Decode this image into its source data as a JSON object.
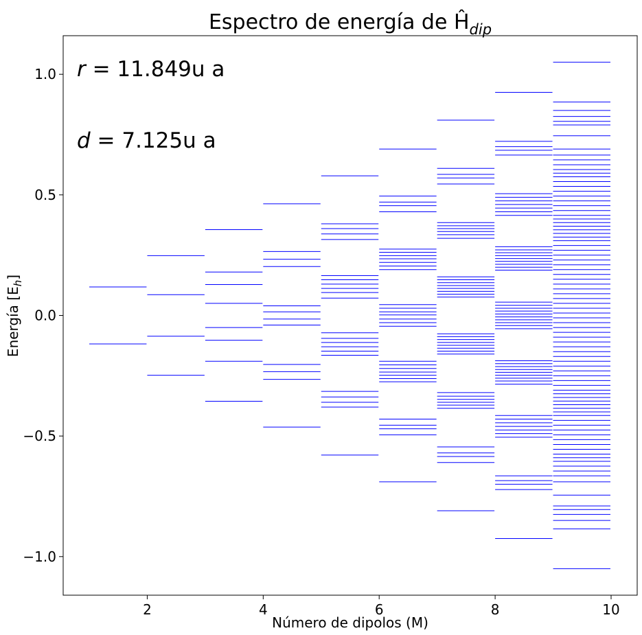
{
  "chart_data": {
    "type": "spectrum",
    "title": "Espectro de energía de Ĥ",
    "title_symbol_subscript": "dip",
    "xlabel": "Número de dipolos (M)",
    "ylabel": "Energía [E",
    "ylabel_subscript": "h",
    "ylabel_suffix": "]",
    "xlim": [
      0.55,
      10.45
    ],
    "ylim": [
      -1.16,
      1.16
    ],
    "xticks": [
      2,
      4,
      6,
      8,
      10
    ],
    "yticks": [
      -1.0,
      -0.5,
      0.0,
      0.5,
      1.0
    ],
    "ytick_labels": [
      "−1.0",
      "−0.5",
      "0.0",
      "0.5",
      "1.0"
    ],
    "annotations": [
      {
        "var": "r",
        "text": " = 11.849u a"
      },
      {
        "var": "d",
        "text": " = 7.125u a"
      }
    ],
    "line_color": "#0000ff",
    "levels": [
      {
        "M": 1,
        "energies": [
          0.118,
          -0.118
        ]
      },
      {
        "M": 2,
        "energies": [
          0.248,
          0.086,
          -0.086,
          -0.248
        ]
      },
      {
        "M": 3,
        "energies": [
          0.356,
          0.18,
          0.128,
          0.05,
          -0.05,
          -0.103,
          -0.19,
          -0.356
        ]
      },
      {
        "M": 4,
        "energies": [
          0.463,
          0.265,
          0.233,
          0.203,
          0.04,
          0.015,
          -0.015,
          -0.04,
          -0.203,
          -0.233,
          -0.265,
          -0.463
        ]
      },
      {
        "M": 5,
        "energies": [
          0.579,
          0.38,
          0.36,
          0.338,
          0.315,
          0.165,
          0.148,
          0.13,
          0.112,
          0.095,
          0.072,
          -0.072,
          -0.095,
          -0.112,
          -0.13,
          -0.148,
          -0.165,
          -0.315,
          -0.338,
          -0.36,
          -0.38,
          -0.579
        ]
      },
      {
        "M": 6,
        "energies": [
          0.69,
          0.495,
          0.47,
          0.455,
          0.43,
          0.275,
          0.262,
          0.248,
          0.235,
          0.22,
          0.205,
          0.19,
          0.045,
          0.03,
          0.015,
          0.002,
          -0.015,
          -0.03,
          -0.045,
          -0.19,
          -0.205,
          -0.22,
          -0.235,
          -0.248,
          -0.262,
          -0.275,
          -0.43,
          -0.455,
          -0.47,
          -0.495,
          -0.69
        ]
      },
      {
        "M": 7,
        "energies": [
          0.81,
          0.61,
          0.585,
          0.57,
          0.545,
          0.385,
          0.372,
          0.36,
          0.348,
          0.335,
          0.32,
          0.16,
          0.148,
          0.136,
          0.124,
          0.112,
          0.1,
          0.088,
          0.076,
          -0.076,
          -0.088,
          -0.1,
          -0.112,
          -0.124,
          -0.136,
          -0.148,
          -0.16,
          -0.32,
          -0.335,
          -0.348,
          -0.36,
          -0.372,
          -0.385,
          -0.545,
          -0.57,
          -0.585,
          -0.61,
          -0.81
        ]
      },
      {
        "M": 8,
        "energies": [
          0.925,
          0.722,
          0.7,
          0.685,
          0.665,
          0.505,
          0.49,
          0.475,
          0.46,
          0.445,
          0.43,
          0.415,
          0.285,
          0.272,
          0.26,
          0.248,
          0.236,
          0.224,
          0.212,
          0.2,
          0.188,
          0.055,
          0.042,
          0.03,
          0.018,
          0.006,
          -0.006,
          -0.018,
          -0.03,
          -0.042,
          -0.055,
          -0.188,
          -0.2,
          -0.212,
          -0.224,
          -0.236,
          -0.248,
          -0.26,
          -0.272,
          -0.285,
          -0.415,
          -0.43,
          -0.445,
          -0.46,
          -0.475,
          -0.49,
          -0.505,
          -0.665,
          -0.685,
          -0.7,
          -0.722,
          -0.925
        ]
      },
      {
        "M": 9,
        "energies": [
          1.05,
          0.885,
          0.85,
          0.825,
          0.805,
          0.79,
          0.745,
          0.69,
          0.665,
          0.645,
          0.625,
          0.605,
          0.59,
          0.575,
          0.555,
          0.535,
          0.515,
          0.495,
          0.475,
          0.455,
          0.435,
          0.415,
          0.4,
          0.385,
          0.37,
          0.355,
          0.34,
          0.325,
          0.31,
          0.29,
          0.27,
          0.25,
          0.23,
          0.21,
          0.19,
          0.17,
          0.15,
          0.13,
          0.11,
          0.09,
          0.07,
          0.05,
          0.03,
          0.01,
          -0.01,
          -0.03,
          -0.05,
          -0.07,
          -0.09,
          -0.11,
          -0.13,
          -0.15,
          -0.17,
          -0.19,
          -0.21,
          -0.23,
          -0.25,
          -0.27,
          -0.29,
          -0.31,
          -0.325,
          -0.34,
          -0.355,
          -0.37,
          -0.385,
          -0.4,
          -0.415,
          -0.435,
          -0.455,
          -0.475,
          -0.495,
          -0.515,
          -0.535,
          -0.555,
          -0.575,
          -0.59,
          -0.605,
          -0.625,
          -0.645,
          -0.665,
          -0.69,
          -0.745,
          -0.79,
          -0.805,
          -0.825,
          -0.85,
          -0.885,
          -1.05
        ]
      }
    ]
  }
}
